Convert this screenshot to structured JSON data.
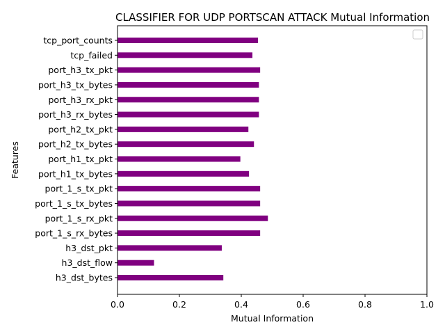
{
  "chart_data": {
    "type": "bar",
    "orientation": "horizontal",
    "title": "CLASSIFIER FOR UDP PORTSCAN ATTACK Mutual Information",
    "xlabel": "Mutual Information",
    "ylabel": "Features",
    "xlim": [
      0,
      1.0
    ],
    "xticks": [
      "0.0",
      "0.2",
      "0.4",
      "0.6",
      "0.8",
      "1.0"
    ],
    "xtick_values": [
      0,
      0.2,
      0.4,
      0.6,
      0.8,
      1.0
    ],
    "categories": [
      "h3_dst_bytes",
      "h3_dst_flow",
      "h3_dst_pkt",
      "port_1_s_rx_bytes",
      "port_1_s_rx_pkt",
      "port_1_s_tx_bytes",
      "port_1_s_tx_pkt",
      "port_h1_tx_bytes",
      "port_h1_tx_pkt",
      "port_h2_tx_bytes",
      "port_h2_tx_pkt",
      "port_h3_rx_bytes",
      "port_h3_rx_pkt",
      "port_h3_tx_bytes",
      "port_h3_tx_pkt",
      "tcp_failed",
      "tcp_port_counts"
    ],
    "values": [
      0.342,
      0.118,
      0.337,
      0.461,
      0.486,
      0.461,
      0.461,
      0.425,
      0.397,
      0.441,
      0.423,
      0.457,
      0.457,
      0.457,
      0.461,
      0.436,
      0.454
    ],
    "bar_color": "#800080",
    "grid": false,
    "legend": "top-right, empty"
  }
}
